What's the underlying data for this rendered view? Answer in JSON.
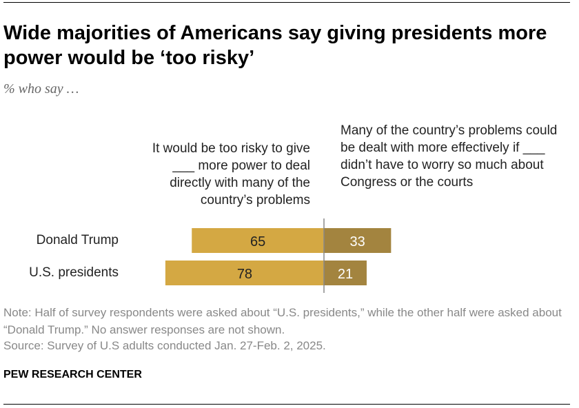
{
  "title": "Wide majorities of Americans say giving presidents more power would be ‘too risky’",
  "subtitle": "% who say …",
  "note": "Note: Half of survey respondents were asked about “U.S. presidents,” while the other half were asked about “Donald Trump.” No answer responses are not shown.",
  "source": "Source: Survey of U.S adults conducted Jan. 27-Feb. 2, 2025.",
  "brand": "PEW RESEARCH CENTER",
  "chart_data": {
    "type": "bar",
    "orientation": "horizontal-diverging",
    "categories": [
      "Donald Trump",
      "U.S. presidents"
    ],
    "series": [
      {
        "name": "It would be too risky to give ___ more power to deal directly with many of the country’s problems",
        "values": [
          65,
          78
        ],
        "color": "#D4A843"
      },
      {
        "name": "Many of the country’s problems could be dealt with more effectively if ___ didn’t have to worry so much about Congress or the courts",
        "values": [
          33,
          21
        ],
        "color": "#A3843F"
      }
    ]
  }
}
